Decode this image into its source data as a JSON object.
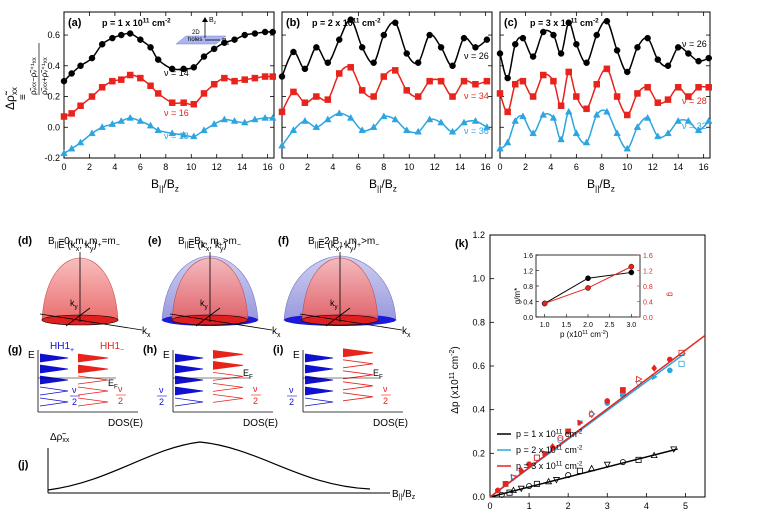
{
  "top": {
    "panels": [
      {
        "label": "(a)",
        "density": "p = 1 x 10",
        "density_exp": "11",
        "density_unit": " cm",
        "density_unit_exp": "-2",
        "nu": [
          "ν = 14",
          "ν = 16",
          "ν = 18"
        ]
      },
      {
        "label": "(b)",
        "density": "p = 2 x 10",
        "density_exp": "11",
        "density_unit": " cm",
        "density_unit_exp": "-2",
        "nu": [
          "ν = 26",
          "ν = 34",
          "ν = 36"
        ]
      },
      {
        "label": "(c)",
        "density": "p = 3 x 10",
        "density_exp": "11",
        "density_unit": " cm",
        "density_unit_exp": "-2",
        "nu": [
          "ν = 26",
          "ν = 28",
          "ν = 32"
        ]
      }
    ],
    "y_ticks": [
      "0.6",
      "0.4",
      "0.2",
      "0.0",
      "-0.2"
    ],
    "x_ticks": [
      "0",
      "2",
      "4",
      "6",
      "8",
      "10",
      "12",
      "14",
      "16"
    ],
    "xlabel": "B",
    "xlabel_sub": "||",
    "xlabel_tail": "/B",
    "xlabel_tail_sub": "z",
    "ylabel": "Δρ̃",
    "ylabel_sub": "xx",
    "ylabel_def": "≡",
    "inset": {
      "bz": "B",
      "bz_sub": "z",
      "b1": "B",
      "b1_sub": "1",
      "text1": "2D",
      "text2": "holes"
    }
  },
  "schematics": {
    "d": {
      "label": "(d)",
      "title": "B",
      "title_sub": "||",
      "title_rest": "=0,  m",
      "rel": "=m"
    },
    "e": {
      "label": "(e)",
      "title": "B",
      "title_sub": "||",
      "title_rest": "=B",
      "rel": ">m"
    },
    "f": {
      "label": "(f)",
      "title": "B",
      "title_sub": "||",
      "title_rest": "=2 B",
      "rel": ">m"
    },
    "e_axis": "E (k",
    "kx": "k",
    "ky": "k"
  },
  "dos": {
    "g": "(g)",
    "h": "(h)",
    "i": "(i)",
    "E": "E",
    "EF": "E",
    "EF_sub": "F",
    "hh_plus": "HH1",
    "hh_minus": "HH1",
    "nu": "ν",
    "two": "2",
    "xlabel": "DOS(E)"
  },
  "j": {
    "label": "(j)",
    "ylabel": "Δρ̃",
    "ylabel_sub": "xx",
    "xlabel": "B",
    "xlabel_sub": "||",
    "xlabel_tail": "/B",
    "xlabel_tail_sub": "z"
  },
  "k": {
    "label": "(k)",
    "ylabel": "Δp (x10",
    "ylabel_exp": "11",
    "ylabel_unit": " cm",
    "ylabel_unit_exp": "-2",
    "ylabel_close": ")",
    "y_ticks": [
      "1.2",
      "1.0",
      "0.8",
      "0.6",
      "0.4",
      "0.2",
      "0.0"
    ],
    "x_ticks": [
      "0",
      "1",
      "2",
      "3",
      "4",
      "5"
    ],
    "legend": [
      {
        "label": "p = 1 x 10",
        "exp": "11",
        "unit": " cm",
        "unit_exp": "-2",
        "color": "#000000"
      },
      {
        "label": "p = 2 x 10",
        "exp": "11",
        "unit": " cm",
        "unit_exp": "-2",
        "color": "#2ca5e0"
      },
      {
        "label": "p = 3 x 10",
        "exp": "11",
        "unit": " cm",
        "unit_exp": "-2",
        "color": "#e8231c"
      }
    ],
    "inset": {
      "ylabel_left": "g/m*",
      "ylabel_right": "g",
      "y_ticks_left": [
        "1.6",
        "1.2",
        "0.8",
        "0.4",
        "0.0"
      ],
      "y_ticks_right": [
        "1.6",
        "1.2",
        "0.8",
        "0.4",
        "0.0"
      ],
      "x_ticks": [
        "1.0",
        "1.5",
        "2.0",
        "2.5",
        "3.0"
      ],
      "xlabel": "p (x10",
      "xlabel_exp": "11",
      "xlabel_unit": " cm",
      "xlabel_unit_exp": "-2",
      "xlabel_close": ")"
    }
  },
  "colors": {
    "black": "#000000",
    "red": "#e8231c",
    "blue": "#2ca5e0",
    "darkblue": "#1010d0"
  },
  "chart_data": [
    {
      "type": "scatter",
      "title": "(a) p = 1 x 10^11 cm^-2",
      "xlabel": "B||/Bz",
      "ylabel": "Δρ̃xx",
      "xlim": [
        0,
        16.5
      ],
      "ylim": [
        -0.2,
        0.75
      ],
      "series": [
        {
          "name": "ν = 14",
          "color": "#000000",
          "x": [
            0,
            0.6,
            1.3,
            2.2,
            3.0,
            3.8,
            4.5,
            5.2,
            6.0,
            6.8,
            7.4,
            8.5,
            9.4,
            10.2,
            11.0,
            11.8,
            12.6,
            13.4,
            14.2,
            15.0,
            15.8,
            16.4
          ],
          "y": [
            0.3,
            0.35,
            0.4,
            0.45,
            0.54,
            0.58,
            0.6,
            0.61,
            0.57,
            0.52,
            0.44,
            0.38,
            0.38,
            0.39,
            0.46,
            0.51,
            0.55,
            0.57,
            0.6,
            0.61,
            0.62,
            0.62
          ]
        },
        {
          "name": "ν = 16",
          "color": "#e8231c",
          "x": [
            0,
            0.6,
            1.3,
            2.2,
            3.0,
            3.8,
            4.5,
            5.2,
            6.0,
            6.8,
            7.4,
            8.5,
            9.4,
            10.2,
            11.0,
            11.8,
            12.6,
            13.4,
            14.2,
            15.0,
            15.8,
            16.4
          ],
          "y": [
            0.07,
            0.09,
            0.14,
            0.2,
            0.26,
            0.3,
            0.31,
            0.34,
            0.32,
            0.27,
            0.22,
            0.16,
            0.16,
            0.15,
            0.22,
            0.28,
            0.32,
            0.3,
            0.31,
            0.32,
            0.33,
            0.33
          ]
        },
        {
          "name": "ν = 18",
          "color": "#2ca5e0",
          "x": [
            0,
            0.6,
            1.3,
            2.2,
            3.0,
            3.8,
            4.5,
            5.2,
            6.0,
            6.8,
            7.4,
            8.5,
            9.4,
            10.2,
            11.0,
            11.8,
            12.6,
            13.4,
            14.2,
            15.0,
            15.8,
            16.4
          ],
          "y": [
            -0.17,
            -0.14,
            -0.1,
            -0.04,
            0.0,
            0.02,
            0.04,
            0.06,
            0.04,
            0.01,
            -0.02,
            -0.04,
            -0.05,
            -0.06,
            -0.02,
            0.02,
            0.05,
            0.04,
            0.03,
            0.05,
            0.06,
            0.06
          ]
        }
      ]
    },
    {
      "type": "scatter",
      "title": "(b) p = 2 x 10^11 cm^-2",
      "xlabel": "B||/Bz",
      "xlim": [
        0,
        16.5
      ],
      "ylim": [
        -0.2,
        0.75
      ],
      "series": [
        {
          "name": "ν = 26",
          "color": "#000000",
          "x": [
            0,
            0.9,
            1.8,
            2.7,
            3.6,
            4.5,
            5.4,
            6.3,
            7.2,
            8.0,
            8.9,
            9.8,
            10.7,
            11.6,
            12.5,
            13.4,
            14.3,
            15.2,
            16.1
          ],
          "y": [
            0.33,
            0.49,
            0.38,
            0.52,
            0.42,
            0.57,
            0.7,
            0.52,
            0.42,
            0.6,
            0.68,
            0.48,
            0.42,
            0.6,
            0.52,
            0.4,
            0.58,
            0.52,
            0.57
          ]
        },
        {
          "name": "ν = 34",
          "color": "#e8231c",
          "x": [
            0,
            0.9,
            1.8,
            2.7,
            3.6,
            4.5,
            5.4,
            6.3,
            7.2,
            8.0,
            8.9,
            9.8,
            10.7,
            11.6,
            12.5,
            13.4,
            14.3,
            15.2,
            16.1
          ],
          "y": [
            0.1,
            0.23,
            0.16,
            0.2,
            0.18,
            0.35,
            0.39,
            0.24,
            0.2,
            0.33,
            0.37,
            0.24,
            0.2,
            0.3,
            0.3,
            0.2,
            0.3,
            0.28,
            0.3
          ]
        },
        {
          "name": "ν = 36",
          "color": "#2ca5e0",
          "x": [
            0,
            0.9,
            1.8,
            2.7,
            3.6,
            4.5,
            5.4,
            6.3,
            7.2,
            8.0,
            8.9,
            9.8,
            10.7,
            11.6,
            12.5,
            13.4,
            14.3,
            15.2,
            16.1
          ],
          "y": [
            -0.12,
            -0.02,
            0.04,
            0.0,
            0.05,
            0.09,
            0.06,
            -0.02,
            0.0,
            0.07,
            0.05,
            -0.02,
            -0.03,
            0.05,
            0.03,
            -0.03,
            0.03,
            0.04,
            0.0
          ]
        }
      ]
    },
    {
      "type": "scatter",
      "title": "(c) p = 3 x 10^11 cm^-2",
      "xlabel": "B||/Bz",
      "xlim": [
        0,
        16.5
      ],
      "ylim": [
        -0.2,
        0.75
      ],
      "series": [
        {
          "name": "ν = 26",
          "color": "#000000",
          "x": [
            0,
            0.6,
            1.2,
            1.8,
            2.6,
            3.4,
            4.2,
            4.8,
            5.4,
            6.0,
            6.8,
            7.6,
            8.4,
            9.2,
            10.0,
            10.8,
            11.6,
            12.4,
            13.2,
            14.0,
            14.8,
            15.6,
            16.4
          ],
          "y": [
            0.48,
            0.32,
            0.54,
            0.58,
            0.46,
            0.62,
            0.6,
            0.48,
            0.68,
            0.54,
            0.42,
            0.6,
            0.69,
            0.5,
            0.36,
            0.52,
            0.58,
            0.44,
            0.4,
            0.52,
            0.48,
            0.43,
            0.45
          ]
        },
        {
          "name": "ν = 28",
          "color": "#e8231c",
          "x": [
            0,
            0.6,
            1.2,
            1.8,
            2.6,
            3.4,
            4.2,
            4.8,
            5.4,
            6.0,
            6.8,
            7.6,
            8.4,
            9.2,
            10.0,
            10.8,
            11.6,
            12.4,
            13.2,
            14.0,
            14.8,
            15.6,
            16.4
          ],
          "y": [
            0.22,
            0.1,
            0.28,
            0.3,
            0.2,
            0.34,
            0.3,
            0.14,
            0.36,
            0.2,
            0.12,
            0.28,
            0.38,
            0.2,
            0.08,
            0.22,
            0.26,
            0.16,
            0.18,
            0.26,
            0.2,
            0.26,
            0.26
          ]
        },
        {
          "name": "ν = 32",
          "color": "#2ca5e0",
          "x": [
            0,
            0.6,
            1.2,
            1.8,
            2.6,
            3.4,
            4.2,
            4.8,
            5.4,
            6.0,
            6.8,
            7.6,
            8.4,
            9.2,
            10.0,
            10.8,
            11.6,
            12.4,
            13.2,
            14.0,
            14.8,
            15.6,
            16.4
          ],
          "y": [
            -0.14,
            -0.1,
            0.04,
            0.07,
            -0.04,
            0.08,
            0.06,
            -0.08,
            0.1,
            -0.04,
            -0.1,
            0.08,
            0.1,
            -0.04,
            -0.14,
            0.0,
            0.06,
            -0.06,
            -0.04,
            0.04,
            0.04,
            -0.02,
            0.04
          ]
        }
      ]
    },
    {
      "type": "scatter",
      "title": "(k)",
      "xlabel": "",
      "ylabel": "Δp (x10^11 cm^-2)",
      "xlim": [
        0,
        5.5
      ],
      "ylim": [
        0,
        1.2
      ],
      "series": [
        {
          "name": "p = 1 x 10^11 cm^-2",
          "color": "#000000",
          "x": [
            0.3,
            0.5,
            0.6,
            0.8,
            1.0,
            1.2,
            1.5,
            1.7,
            2.0,
            2.3,
            2.6,
            3.0,
            3.4,
            3.8,
            4.2,
            4.7
          ],
          "y": [
            0.01,
            0.02,
            0.03,
            0.04,
            0.05,
            0.06,
            0.07,
            0.08,
            0.1,
            0.12,
            0.13,
            0.15,
            0.16,
            0.17,
            0.19,
            0.22
          ],
          "fit": {
            "x": [
              0,
              4.8
            ],
            "y": [
              0,
              0.22
            ]
          }
        },
        {
          "name": "p = 2 x 10^11 cm^-2",
          "color": "#2ca5e0",
          "x": [
            0.2,
            0.4,
            0.6,
            0.8,
            1.0,
            1.2,
            1.4,
            1.6,
            1.8,
            2.0,
            2.3,
            2.6,
            3.0,
            3.4,
            3.8,
            4.2,
            4.6,
            4.9
          ],
          "y": [
            0.03,
            0.06,
            0.09,
            0.12,
            0.15,
            0.18,
            0.2,
            0.22,
            0.26,
            0.3,
            0.34,
            0.38,
            0.43,
            0.47,
            0.52,
            0.55,
            0.58,
            0.61
          ],
          "fit": {
            "x": [
              0,
              5.0
            ],
            "y": [
              0,
              0.66
            ]
          }
        },
        {
          "name": "p = 3 x 10^11 cm^-2",
          "color": "#e8231c",
          "x": [
            0.2,
            0.4,
            0.6,
            0.8,
            1.0,
            1.2,
            1.4,
            1.6,
            1.8,
            2.0,
            2.3,
            2.6,
            3.0,
            3.4,
            3.8,
            4.2,
            4.6,
            4.9
          ],
          "y": [
            0.03,
            0.06,
            0.09,
            0.12,
            0.15,
            0.18,
            0.2,
            0.23,
            0.27,
            0.3,
            0.34,
            0.38,
            0.44,
            0.49,
            0.54,
            0.59,
            0.63,
            0.66
          ],
          "fit": {
            "x": [
              0,
              5.5
            ],
            "y": [
              0,
              0.74
            ]
          }
        }
      ]
    },
    {
      "type": "line",
      "title": "(k) inset",
      "xlabel": "p (x10^11 cm^-2)",
      "ylabel": "g/m*",
      "xlim": [
        0.8,
        3.2
      ],
      "ylim": [
        0,
        1.6
      ],
      "series": [
        {
          "name": "g/m*",
          "color": "#000000",
          "x": [
            1.0,
            2.0,
            3.0
          ],
          "y": [
            0.35,
            1.0,
            1.15
          ]
        },
        {
          "name": "g",
          "color": "#e8231c",
          "x": [
            1.0,
            2.0,
            3.0
          ],
          "y": [
            0.35,
            0.75,
            1.3
          ]
        }
      ]
    }
  ]
}
